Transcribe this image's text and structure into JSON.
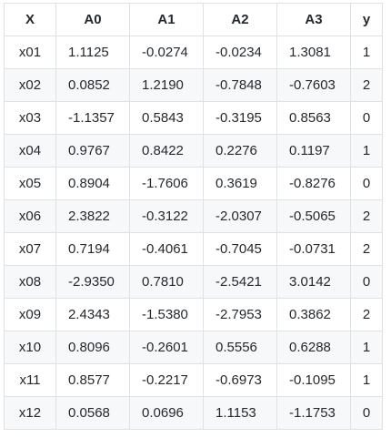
{
  "table": {
    "headers": [
      "X",
      "A0",
      "A1",
      "A2",
      "A3",
      "y"
    ],
    "rows": [
      [
        "x01",
        "1.1125",
        "-0.0274",
        "-0.0234",
        "1.3081",
        "1"
      ],
      [
        "x02",
        "0.0852",
        "1.2190",
        "-0.7848",
        "-0.7603",
        "2"
      ],
      [
        "x03",
        "-1.1357",
        "0.5843",
        "-0.3195",
        "0.8563",
        "0"
      ],
      [
        "x04",
        "0.9767",
        "0.8422",
        "0.2276",
        "0.1197",
        "1"
      ],
      [
        "x05",
        "0.8904",
        "-1.7606",
        "0.3619",
        "-0.8276",
        "0"
      ],
      [
        "x06",
        "2.3822",
        "-0.3122",
        "-2.0307",
        "-0.5065",
        "2"
      ],
      [
        "x07",
        "0.7194",
        "-0.4061",
        "-0.7045",
        "-0.0731",
        "2"
      ],
      [
        "x08",
        "-2.9350",
        "0.7810",
        "-2.5421",
        "3.0142",
        "0"
      ],
      [
        "x09",
        "2.4343",
        "-1.5380",
        "-2.7953",
        "0.3862",
        "2"
      ],
      [
        "x10",
        "0.8096",
        "-0.2601",
        "0.5556",
        "0.6288",
        "1"
      ],
      [
        "x11",
        "0.8577",
        "-0.2217",
        "-0.6973",
        "-0.1095",
        "1"
      ],
      [
        "x12",
        "0.0568",
        "0.0696",
        "1.1153",
        "-1.1753",
        "0"
      ]
    ]
  }
}
